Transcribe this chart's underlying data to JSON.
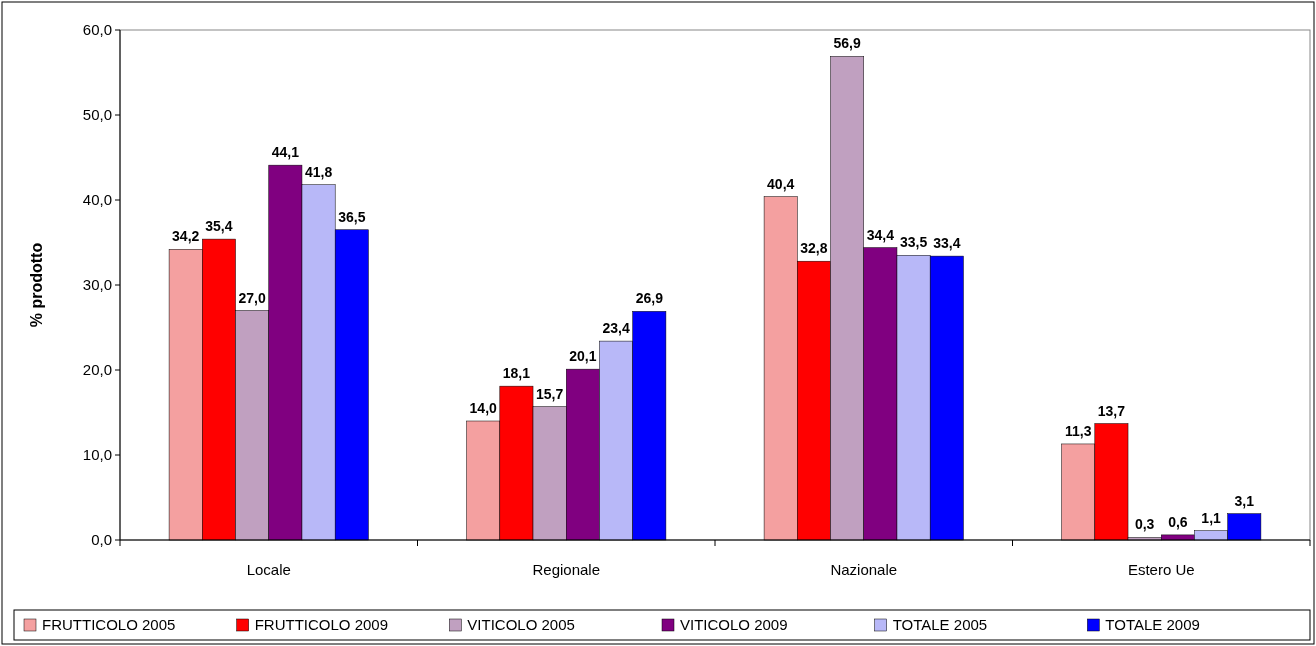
{
  "chart_data": {
    "type": "bar",
    "ylabel": "% prodotto",
    "categories": [
      "Locale",
      "Regionale",
      "Nazionale",
      "Estero Ue"
    ],
    "series": [
      {
        "name": "FRUTTICOLO 2005",
        "color": "#f4a0a0",
        "values": [
          34.2,
          14.0,
          40.4,
          11.3
        ],
        "value_labels": [
          "34,2",
          "14,0",
          "40,4",
          "11,3"
        ]
      },
      {
        "name": "FRUTTICOLO 2009",
        "color": "#ff0000",
        "values": [
          35.4,
          18.1,
          32.8,
          13.7
        ],
        "value_labels": [
          "35,4",
          "18,1",
          "32,8",
          "13,7"
        ]
      },
      {
        "name": "VITICOLO 2005",
        "color": "#c0a0c0",
        "values": [
          27.0,
          15.7,
          56.9,
          0.3
        ],
        "value_labels": [
          "27,0",
          "15,7",
          "56,9",
          "0,3"
        ]
      },
      {
        "name": "VITICOLO 2009",
        "color": "#800080",
        "values": [
          44.1,
          20.1,
          34.4,
          0.6
        ],
        "value_labels": [
          "44,1",
          "20,1",
          "34,4",
          "0,6"
        ]
      },
      {
        "name": "TOTALE 2005",
        "color": "#b8b8f8",
        "values": [
          41.8,
          23.4,
          33.5,
          1.1
        ],
        "value_labels": [
          "41,8",
          "23,4",
          "33,5",
          "1,1"
        ]
      },
      {
        "name": "TOTALE 2009",
        "color": "#0000ff",
        "values": [
          36.5,
          26.9,
          33.4,
          3.1
        ],
        "value_labels": [
          "36,5",
          "26,9",
          "33,4",
          "3,1"
        ]
      }
    ],
    "ylim": [
      0,
      60
    ],
    "yticks": [
      {
        "value": 0,
        "label": "0,0"
      },
      {
        "value": 10,
        "label": "10,0"
      },
      {
        "value": 20,
        "label": "20,0"
      },
      {
        "value": 30,
        "label": "30,0"
      },
      {
        "value": 40,
        "label": "40,0"
      },
      {
        "value": 50,
        "label": "50,0"
      },
      {
        "value": 60,
        "label": "60,0"
      }
    ],
    "grid": false,
    "legend": "bottom"
  }
}
